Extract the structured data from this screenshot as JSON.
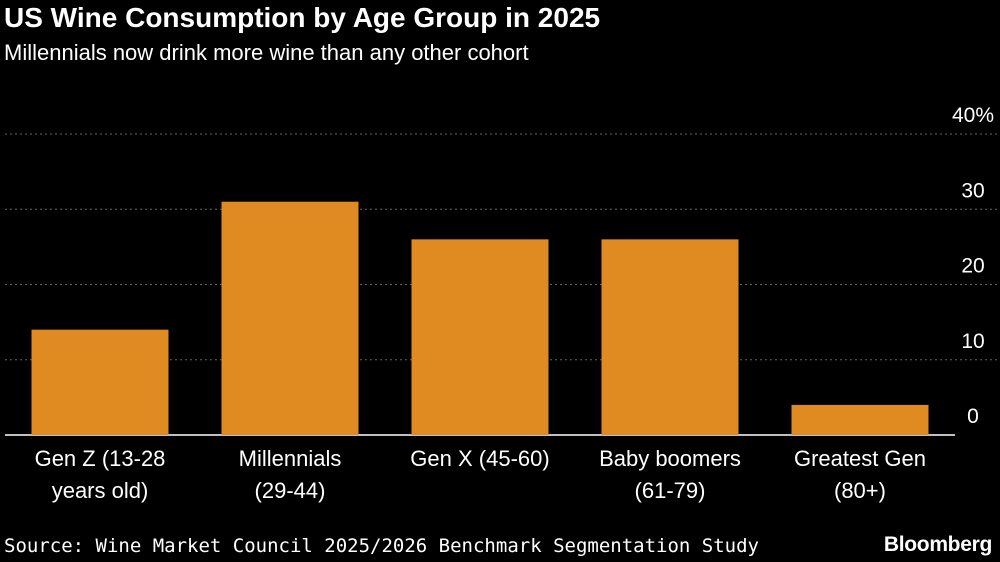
{
  "header": {
    "title": "US Wine Consumption by Age Group in 2025",
    "subtitle": "Millennials now drink more wine than any other cohort"
  },
  "footer": {
    "source": "Source: Wine Market Council 2025/2026 Benchmark Segmentation Study",
    "brand": "Bloomberg"
  },
  "colors": {
    "bar": "#E08A22",
    "grid": "#666666",
    "axis": "#ffffff",
    "background": "#000000"
  },
  "chart_data": {
    "type": "bar",
    "categories": [
      [
        "Gen Z (13-28",
        "years old)"
      ],
      [
        "Millennials",
        "(29-44)"
      ],
      [
        "Gen X (45-60)"
      ],
      [
        "Baby boomers",
        "(61-79)"
      ],
      [
        "Greatest Gen",
        "(80+)"
      ]
    ],
    "values": [
      14,
      31,
      26,
      26,
      4
    ],
    "title": "US Wine Consumption by Age Group in 2025",
    "subtitle": "Millennials now drink more wine than any other cohort",
    "ylim": [
      0,
      40
    ],
    "yticks": [
      "0",
      "10",
      "20",
      "30",
      "40%"
    ],
    "grid": true,
    "y_axis_position": "right"
  }
}
